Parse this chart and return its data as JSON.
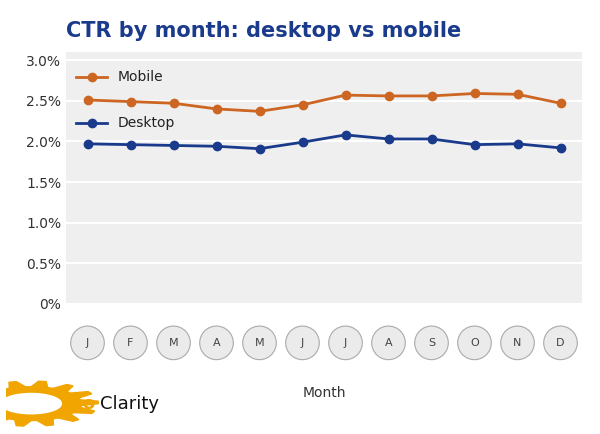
{
  "title": "CTR by month: desktop vs mobile",
  "xlabel": "Month",
  "months": [
    "J",
    "F",
    "M",
    "A",
    "M",
    "J",
    "J",
    "A",
    "S",
    "O",
    "N",
    "D"
  ],
  "mobile": [
    0.0251,
    0.0249,
    0.0247,
    0.024,
    0.0237,
    0.0245,
    0.0257,
    0.0256,
    0.0256,
    0.0259,
    0.0258,
    0.0247
  ],
  "desktop": [
    0.0197,
    0.0196,
    0.0195,
    0.0194,
    0.0191,
    0.0199,
    0.0208,
    0.0203,
    0.0203,
    0.0196,
    0.0197,
    0.0192
  ],
  "mobile_color": "#CC6622",
  "desktop_color": "#1A3A8C",
  "ylim": [
    0,
    0.031
  ],
  "yticks": [
    0,
    0.005,
    0.01,
    0.015,
    0.02,
    0.025,
    0.03
  ],
  "ytick_labels": [
    "0%",
    "0.5%",
    "1.0%",
    "1.5%",
    "2.0%",
    "2.5%",
    "3.0%"
  ],
  "bg_color": "#FFFFFF",
  "plot_bg_color": "#EFEFEF",
  "grid_color": "#FFFFFF",
  "title_color": "#1A3A8C",
  "title_fontsize": 15,
  "axis_fontsize": 10,
  "legend_fontsize": 10,
  "marker_size": 6,
  "line_width": 2.0,
  "seo_color": "#F0A500",
  "clarity_color": "#111111",
  "circle_bg": "#EBEBEB",
  "circle_edge": "#AAAAAA"
}
